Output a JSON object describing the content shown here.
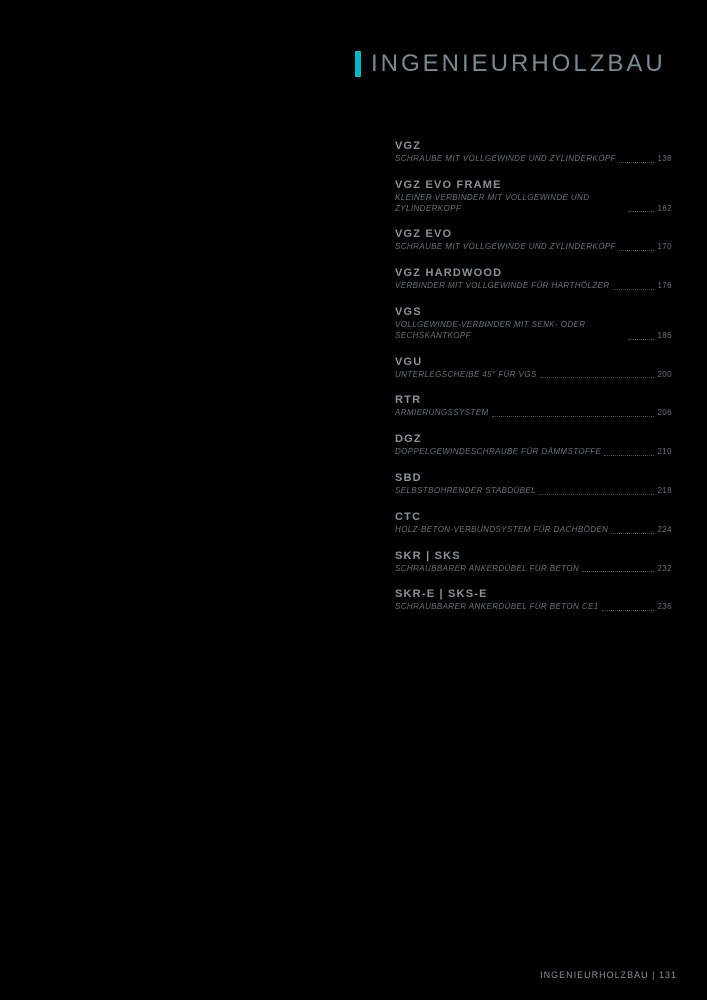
{
  "title": "INGENIEURHOLZBAU",
  "accent_color": "#00b8c4",
  "background_color": "#000000",
  "title_color": "#7a8a92",
  "code_color": "#8a9298",
  "desc_color": "#6a7278",
  "toc": [
    {
      "code": "VGZ",
      "desc": "SCHRAUBE MIT VOLLGEWINDE UND ZYLINDERKOPF",
      "page": "138"
    },
    {
      "code": "VGZ EVO FRAME",
      "desc": "KLEINER VERBINDER MIT VOLLGEWINDE UND ZYLINDERKOPF",
      "page": "162"
    },
    {
      "code": "VGZ EVO",
      "desc": "SCHRAUBE MIT VOLLGEWINDE UND ZYLINDERKOPF",
      "page": "170"
    },
    {
      "code": "VGZ HARDWOOD",
      "desc": "VERBINDER MIT VOLLGEWINDE FÜR HARTHÖLZER",
      "page": "176"
    },
    {
      "code": "VGS",
      "desc": "VOLLGEWINDE-VERBINDER MIT SENK- ODER SECHSKANTKOPF",
      "page": "186"
    },
    {
      "code": "VGU",
      "desc": "UNTERLEGSCHEIBE 45° FÜR VGS",
      "page": "200"
    },
    {
      "code": "RTR",
      "desc": "ARMIERUNGSSYSTEM",
      "page": "206"
    },
    {
      "code": "DGZ",
      "desc": "DOPPELGEWINDESCHRAUBE FÜR DÄMMSTOFFE",
      "page": "210"
    },
    {
      "code": "SBD",
      "desc": "SELBSTBOHRENDER STABDÜBEL",
      "page": "218"
    },
    {
      "code": "CTC",
      "desc": "HOLZ-BETON-VERBUNDSYSTEM FÜR DACHBÖDEN",
      "page": "224"
    },
    {
      "code": "SKR | SKS",
      "desc": "SCHRAUBBARER ANKERDÜBEL FÜR BETON",
      "page": "232"
    },
    {
      "code": "SKR-E | SKS-E",
      "desc": "SCHRAUBBARER ANKERDÜBEL FÜR BETON CE1",
      "page": "236"
    }
  ],
  "footer": {
    "label": "INGENIEURHOLZBAU",
    "sep": " | ",
    "page": "131"
  }
}
